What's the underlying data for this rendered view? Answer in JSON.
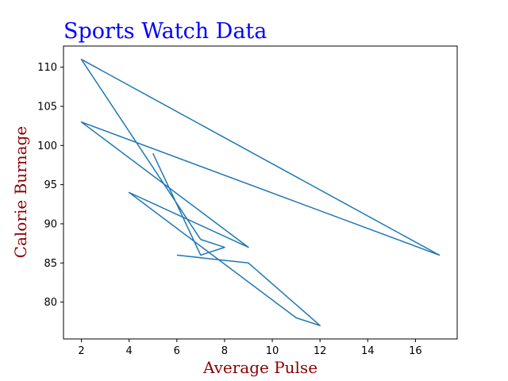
{
  "chart_data": {
    "type": "line",
    "title": "Sports Watch Data",
    "xlabel": "Average Pulse",
    "ylabel": "Calorie Burnage",
    "xlim": [
      1.25,
      17.75
    ],
    "ylim": [
      75.3,
      112.7
    ],
    "xticks": [
      2,
      4,
      6,
      8,
      10,
      12,
      14,
      16
    ],
    "yticks": [
      80,
      85,
      90,
      95,
      100,
      105,
      110
    ],
    "grid": false,
    "series": [
      {
        "x": [
          5,
          7,
          8,
          7,
          2,
          17,
          2,
          9,
          4,
          11,
          12,
          9,
          6
        ],
        "y": [
          99,
          86,
          87,
          88,
          111,
          86,
          103,
          87,
          94,
          78,
          77,
          85,
          86
        ],
        "color": "#1f77b4"
      }
    ]
  },
  "colors": {
    "title": "#0000ff",
    "axis_labels": "#8b0000"
  }
}
